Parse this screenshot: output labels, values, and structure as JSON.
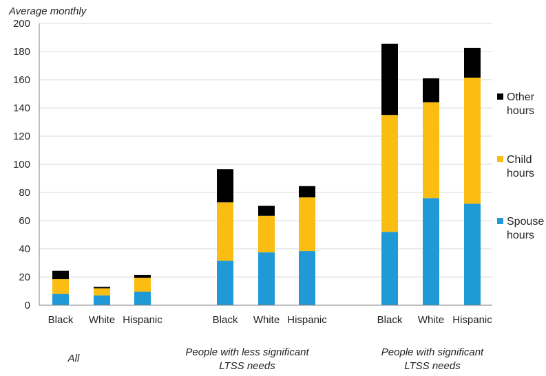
{
  "chart_data": {
    "type": "bar",
    "stacked": true,
    "ylabel": "Average monthly",
    "ylim": [
      0,
      200
    ],
    "yticks": [
      0,
      20,
      40,
      60,
      80,
      100,
      120,
      140,
      160,
      180,
      200
    ],
    "grid": true,
    "legend_position": "right",
    "groups": [
      {
        "label": "All",
        "label_lines": [
          "All"
        ]
      },
      {
        "label": "People with less significant LTSS needs",
        "label_lines": [
          "People with less significant",
          "LTSS needs"
        ]
      },
      {
        "label": "People with significant LTSS needs",
        "label_lines": [
          "People with significant",
          "LTSS needs"
        ]
      }
    ],
    "categories": [
      "Black",
      "White",
      "Hispanic",
      "Black",
      "White",
      "Hispanic",
      "Black",
      "White",
      "Hispanic"
    ],
    "category_group": [
      0,
      0,
      0,
      1,
      1,
      1,
      2,
      2,
      2
    ],
    "series": [
      {
        "name": "Spouse hours",
        "legend_lines": [
          "Spouse",
          "hours"
        ],
        "color": "#1f9ad6",
        "values": [
          8,
          7,
          9.5,
          31.5,
          37.5,
          38.5,
          52,
          76,
          72
        ]
      },
      {
        "name": "Child hours",
        "legend_lines": [
          "Child",
          "hours"
        ],
        "color": "#fbbd12",
        "values": [
          10.5,
          5,
          10,
          41.5,
          26,
          38,
          83,
          68,
          89.5
        ]
      },
      {
        "name": "Other hours",
        "legend_lines": [
          "Other",
          "hours"
        ],
        "color": "#000000",
        "values": [
          6,
          1,
          2,
          23.5,
          7,
          8,
          50.5,
          17,
          21
        ]
      }
    ]
  }
}
